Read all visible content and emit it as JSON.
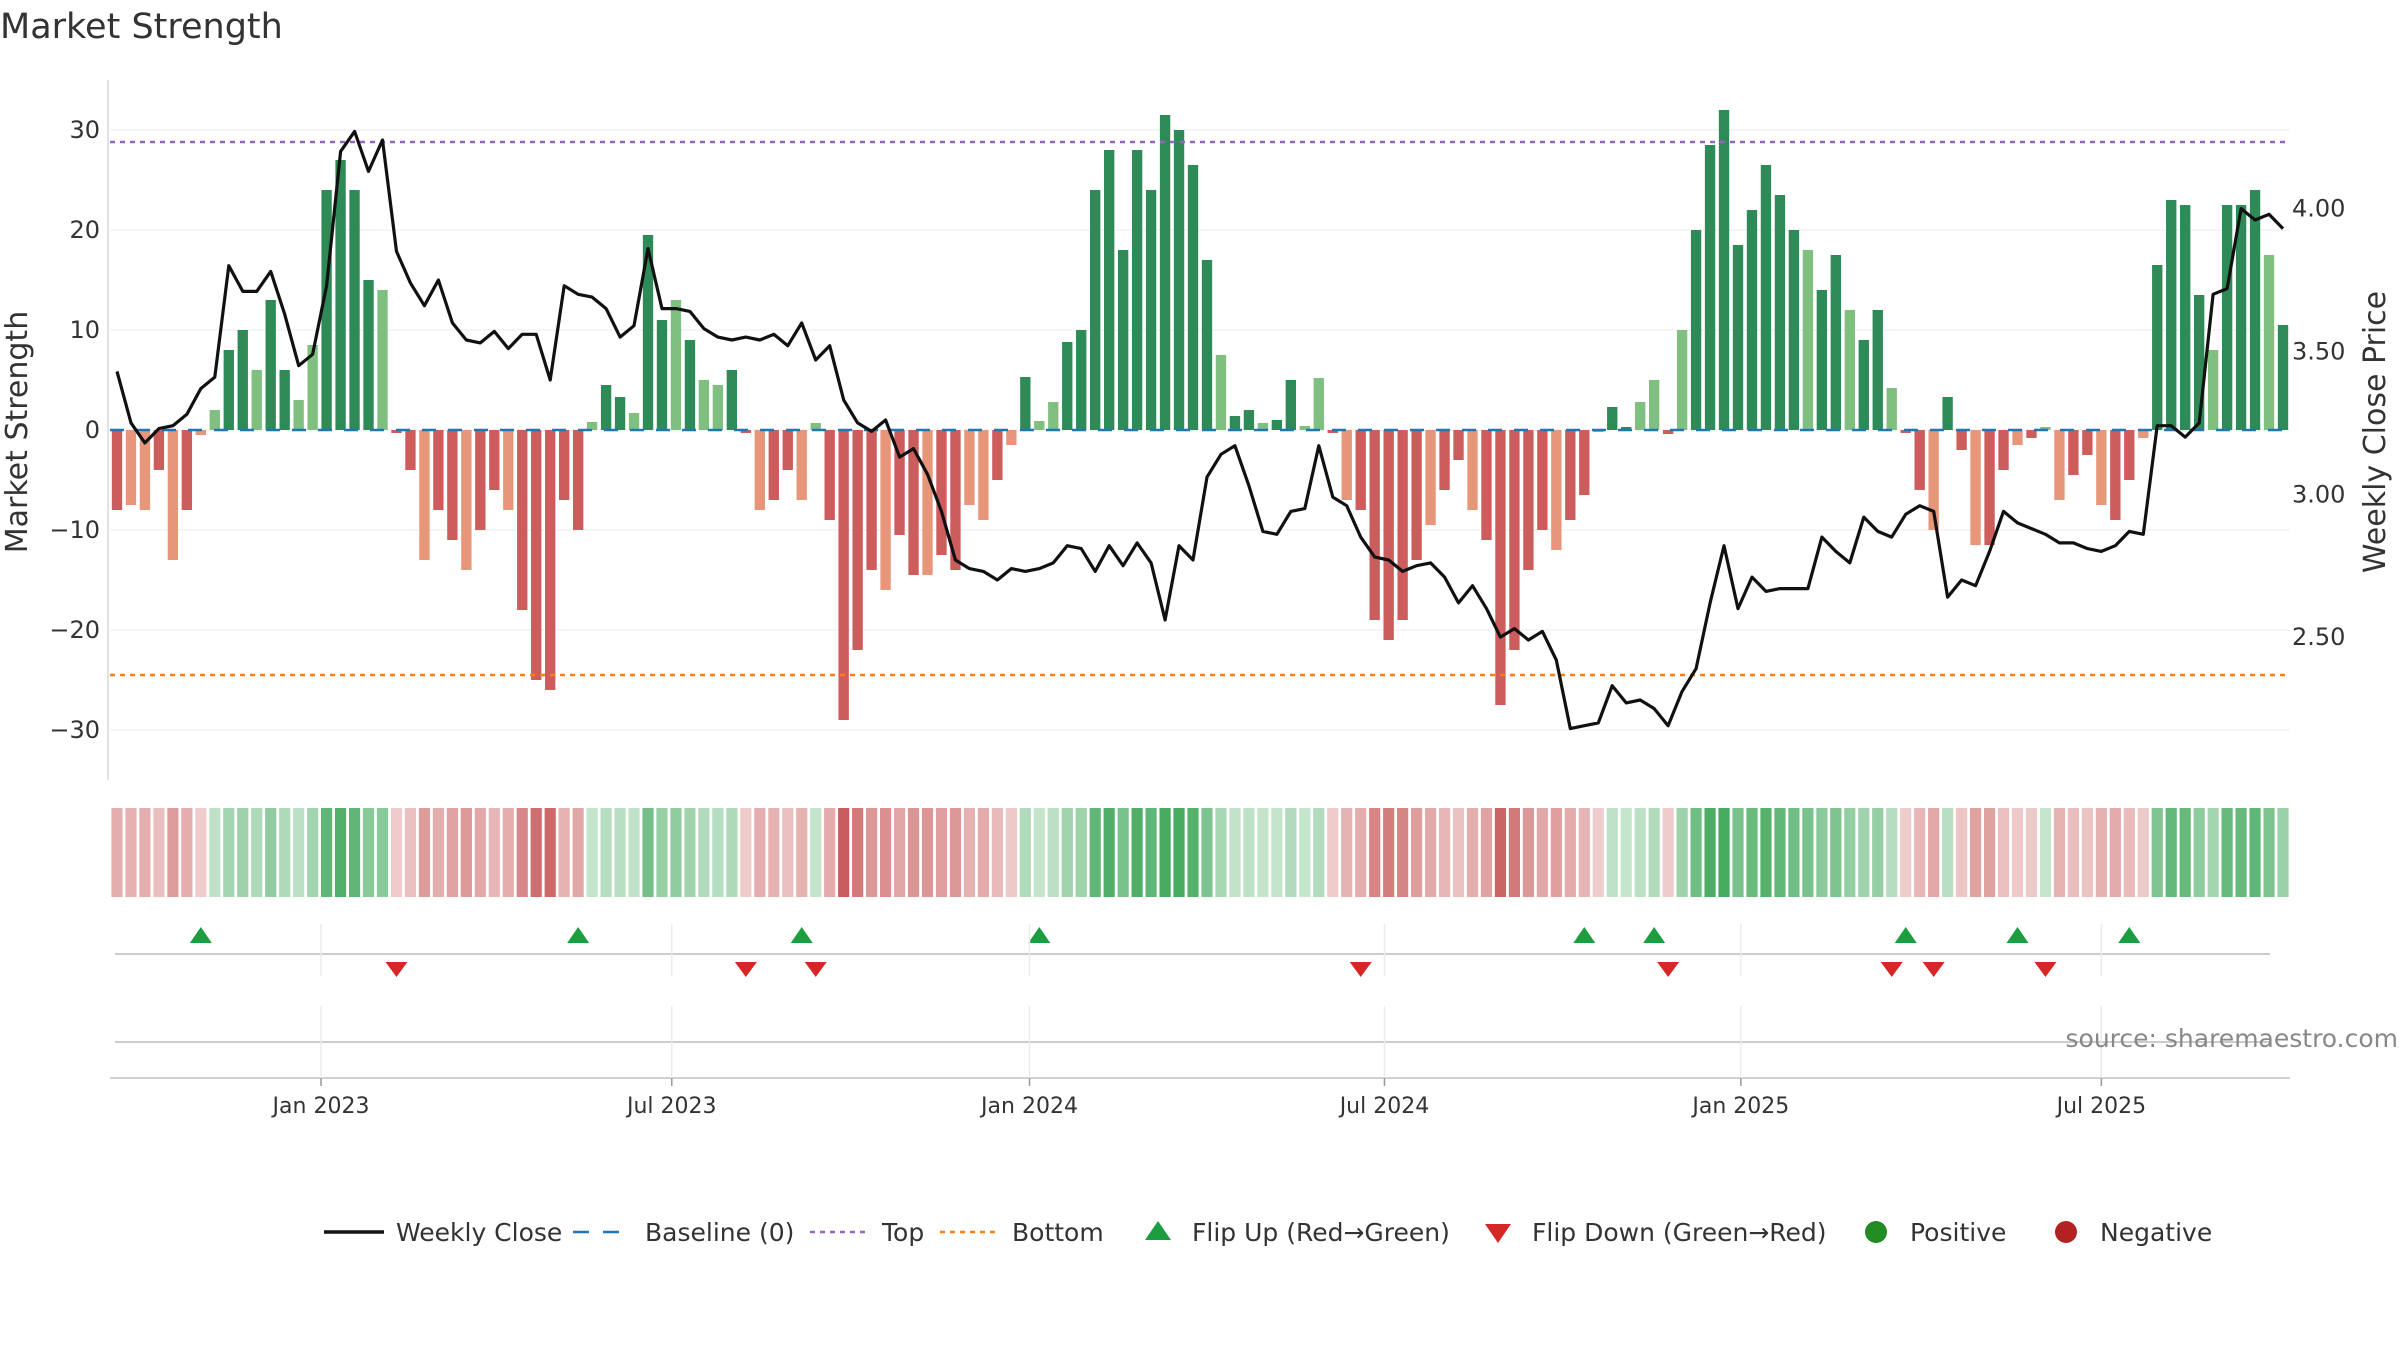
{
  "chart_data": {
    "type": "bar+line",
    "title": "Market Strength",
    "ylabel_left": "Market Strength",
    "ylabel_right": "Weekly Close Price",
    "source_text": "source: sharemaestro.com",
    "left_axis": {
      "ylim": [
        -35,
        35
      ],
      "ticks": [
        30,
        20,
        10,
        0,
        -10,
        -20,
        -30
      ],
      "tick_labels": [
        "30",
        "20",
        "10",
        "0",
        "−10",
        "−20",
        "−30"
      ]
    },
    "right_axis": {
      "ylim": [
        2.0,
        4.45
      ],
      "ticks": [
        4.0,
        3.5,
        3.0,
        2.5
      ],
      "tick_labels": [
        "4.00",
        "3.50",
        "3.00",
        "2.50"
      ]
    },
    "x_axis": {
      "start_week": 0,
      "end_week": 152,
      "ticks": [
        {
          "label": "Jan 2023",
          "week": 14.6
        },
        {
          "label": "Jul 2023",
          "week": 39.7
        },
        {
          "label": "Jan 2024",
          "week": 65.3
        },
        {
          "label": "Jul 2024",
          "week": 90.7
        },
        {
          "label": "Jan 2025",
          "week": 116.2
        },
        {
          "label": "Jul 2025",
          "week": 142.0
        }
      ]
    },
    "top_level": 28.8,
    "bottom_level": -24.5,
    "market_strength": [
      -8,
      -7.5,
      -8,
      -4,
      -13,
      -8,
      -0.5,
      2,
      8,
      10,
      6,
      13,
      6,
      3,
      8.5,
      24,
      27,
      24,
      15,
      14,
      -0.3,
      -4,
      -13,
      -8,
      -11,
      -14,
      -10,
      -6,
      -8,
      -18,
      -25,
      -26,
      -7,
      -10,
      0.8,
      4.5,
      3.3,
      1.7,
      19.5,
      11,
      13,
      9,
      5,
      4.5,
      6,
      -0.3,
      -8,
      -7,
      -4,
      -7,
      0.7,
      -9,
      -29,
      -22,
      -14,
      -16,
      -10.5,
      -14.5,
      -14.5,
      -12.5,
      -14,
      -7.5,
      -9,
      -5,
      -1.5,
      5.3,
      0.9,
      2.8,
      8.8,
      10,
      24,
      28,
      18,
      28,
      24,
      31.5,
      30,
      26.5,
      17,
      7.5,
      1.4,
      2,
      0.7,
      1,
      5,
      0.4,
      5.2,
      -0.3,
      -7,
      -8,
      -19,
      -21,
      -19,
      -13,
      -9.5,
      -6,
      -3,
      -8,
      -11,
      -27.5,
      -22,
      -14,
      -10,
      -12,
      -9,
      -6.5,
      -0.2,
      2.3,
      0.3,
      2.8,
      5,
      -0.4,
      10,
      20,
      28.5,
      32,
      18.5,
      22,
      26.5,
      23.5,
      20,
      18,
      14,
      17.5,
      12,
      9,
      12,
      4.2,
      -0.3,
      -6,
      -10,
      3.3,
      -2,
      -11.5,
      -11.5,
      -4,
      -1.5,
      -0.8,
      0.3,
      -7,
      -4.5,
      -2.5,
      -7.5,
      -9,
      -5,
      -0.8,
      16.5,
      23,
      22.5,
      13.5,
      8,
      22.5,
      22.5,
      24,
      17.5,
      10.5
    ],
    "weekly_close": [
      3.43,
      3.25,
      3.18,
      3.23,
      3.24,
      3.28,
      3.37,
      3.41,
      3.8,
      3.71,
      3.71,
      3.78,
      3.63,
      3.45,
      3.49,
      3.73,
      4.2,
      4.27,
      4.13,
      4.24,
      3.85,
      3.74,
      3.66,
      3.75,
      3.6,
      3.54,
      3.53,
      3.57,
      3.51,
      3.56,
      3.56,
      3.4,
      3.73,
      3.7,
      3.69,
      3.65,
      3.55,
      3.59,
      3.86,
      3.65,
      3.65,
      3.64,
      3.58,
      3.55,
      3.54,
      3.55,
      3.54,
      3.56,
      3.52,
      3.6,
      3.47,
      3.52,
      3.33,
      3.25,
      3.22,
      3.26,
      3.13,
      3.16,
      3.07,
      2.94,
      2.77,
      2.74,
      2.73,
      2.7,
      2.74,
      2.73,
      2.74,
      2.76,
      2.82,
      2.81,
      2.73,
      2.82,
      2.75,
      2.83,
      2.76,
      2.56,
      2.82,
      2.77,
      3.06,
      3.14,
      3.17,
      3.03,
      2.87,
      2.86,
      2.94,
      2.95,
      3.17,
      2.99,
      2.96,
      2.85,
      2.78,
      2.77,
      2.73,
      2.75,
      2.76,
      2.71,
      2.62,
      2.68,
      2.6,
      2.5,
      2.53,
      2.49,
      2.52,
      2.42,
      2.18,
      2.19,
      2.2,
      2.33,
      2.27,
      2.28,
      2.25,
      2.19,
      2.31,
      2.39,
      2.62,
      2.82,
      2.6,
      2.71,
      2.66,
      2.67,
      2.67,
      2.67,
      2.85,
      2.8,
      2.76,
      2.92,
      2.87,
      2.85,
      2.93,
      2.96,
      2.94,
      2.64,
      2.7,
      2.68,
      2.8,
      2.94,
      2.9,
      2.88,
      2.86,
      2.83,
      2.83,
      2.81,
      2.8,
      2.82,
      2.87,
      2.86,
      3.24,
      3.24,
      3.2,
      3.25,
      3.7,
      3.72,
      4.0,
      3.96,
      3.98,
      3.93
    ],
    "flip_up_weeks": [
      6,
      33,
      49,
      66,
      105,
      110,
      128,
      136,
      144
    ],
    "flip_down_weeks": [
      20,
      45,
      50,
      89,
      111,
      127,
      130,
      138
    ],
    "colors": {
      "strong_positive": "#2e8b57",
      "weak_positive": "#7fc080",
      "strong_negative": "#cd5c5c",
      "weak_negative": "#e8967a",
      "baseline": "#1f77b4",
      "top_line": "#9467bd",
      "bottom_line": "#ff7f0e",
      "close_line": "#111111",
      "flip_up": "#1a9e3f",
      "flip_down": "#d62728",
      "positive_dot": "#228b22",
      "negative_dot": "#b22222"
    },
    "legend": [
      {
        "label": "Weekly Close",
        "kind": "line"
      },
      {
        "label": "Baseline (0)",
        "kind": "baseline"
      },
      {
        "label": "Top",
        "kind": "top"
      },
      {
        "label": "Bottom",
        "kind": "bottom"
      },
      {
        "label": "Flip Up (Red→Green)",
        "kind": "flip_up"
      },
      {
        "label": "Flip Down (Green→Red)",
        "kind": "flip_down"
      },
      {
        "label": "Positive",
        "kind": "positive"
      },
      {
        "label": "Negative",
        "kind": "negative"
      }
    ]
  }
}
